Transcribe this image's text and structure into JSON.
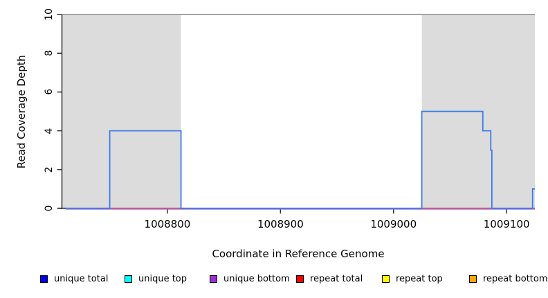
{
  "chart_data": {
    "type": "line",
    "title": "",
    "xlabel": "Coordinate in Reference Genome",
    "ylabel": "Read Coverage Depth",
    "xlim": [
      1008707,
      1009125
    ],
    "ylim": [
      0,
      10
    ],
    "x_ticks": [
      "1008800",
      "1008900",
      "1009000",
      "1009100"
    ],
    "y_ticks": [
      "0",
      "2",
      "4",
      "6",
      "8",
      "10"
    ],
    "grid": false,
    "legend_position": "bottom",
    "shaded_regions": [
      {
        "name": "repeat-region-left",
        "x0": 1008707,
        "x1": 1008812
      },
      {
        "name": "repeat-region-right",
        "x0": 1009025,
        "x1": 1009125
      }
    ],
    "cap_line": {
      "y": 10,
      "color": "#a2a2a2"
    },
    "coverage_line": {
      "name": "read-coverage-depth",
      "color": "#3b7de9",
      "points": [
        [
          1008710,
          0
        ],
        [
          1008749,
          0
        ],
        [
          1008749,
          4
        ],
        [
          1008812,
          4
        ],
        [
          1008812,
          0
        ],
        [
          1009025,
          0
        ],
        [
          1009025,
          5
        ],
        [
          1009079,
          5
        ],
        [
          1009079,
          4
        ],
        [
          1009086,
          4
        ],
        [
          1009086,
          3
        ],
        [
          1009087,
          3
        ],
        [
          1009087,
          0
        ],
        [
          1009123,
          0
        ],
        [
          1009123,
          1
        ],
        [
          1009125,
          1
        ]
      ]
    },
    "baseline_lines": [
      {
        "name": "unique-bottom-baseline",
        "color": "#9467d8",
        "y": 0,
        "x0": 1008710,
        "x1": 1009125
      },
      {
        "name": "repeat-total-baseline",
        "color": "#e0506e",
        "y": 0,
        "x0": 1008710,
        "x1": 1009125
      }
    ]
  },
  "legend": {
    "items": [
      {
        "label": "unique total",
        "color": "#0000ee"
      },
      {
        "label": "unique top",
        "color": "#00ffff"
      },
      {
        "label": "unique bottom",
        "color": "#9932cc"
      },
      {
        "label": "repeat total",
        "color": "#ff0000"
      },
      {
        "label": "repeat top",
        "color": "#ffff00"
      },
      {
        "label": "repeat bottom",
        "color": "#ffa500"
      }
    ]
  },
  "colors": {
    "shaded_region": "#dcdcdc",
    "axis": "#303030",
    "background": "#ffffff"
  }
}
